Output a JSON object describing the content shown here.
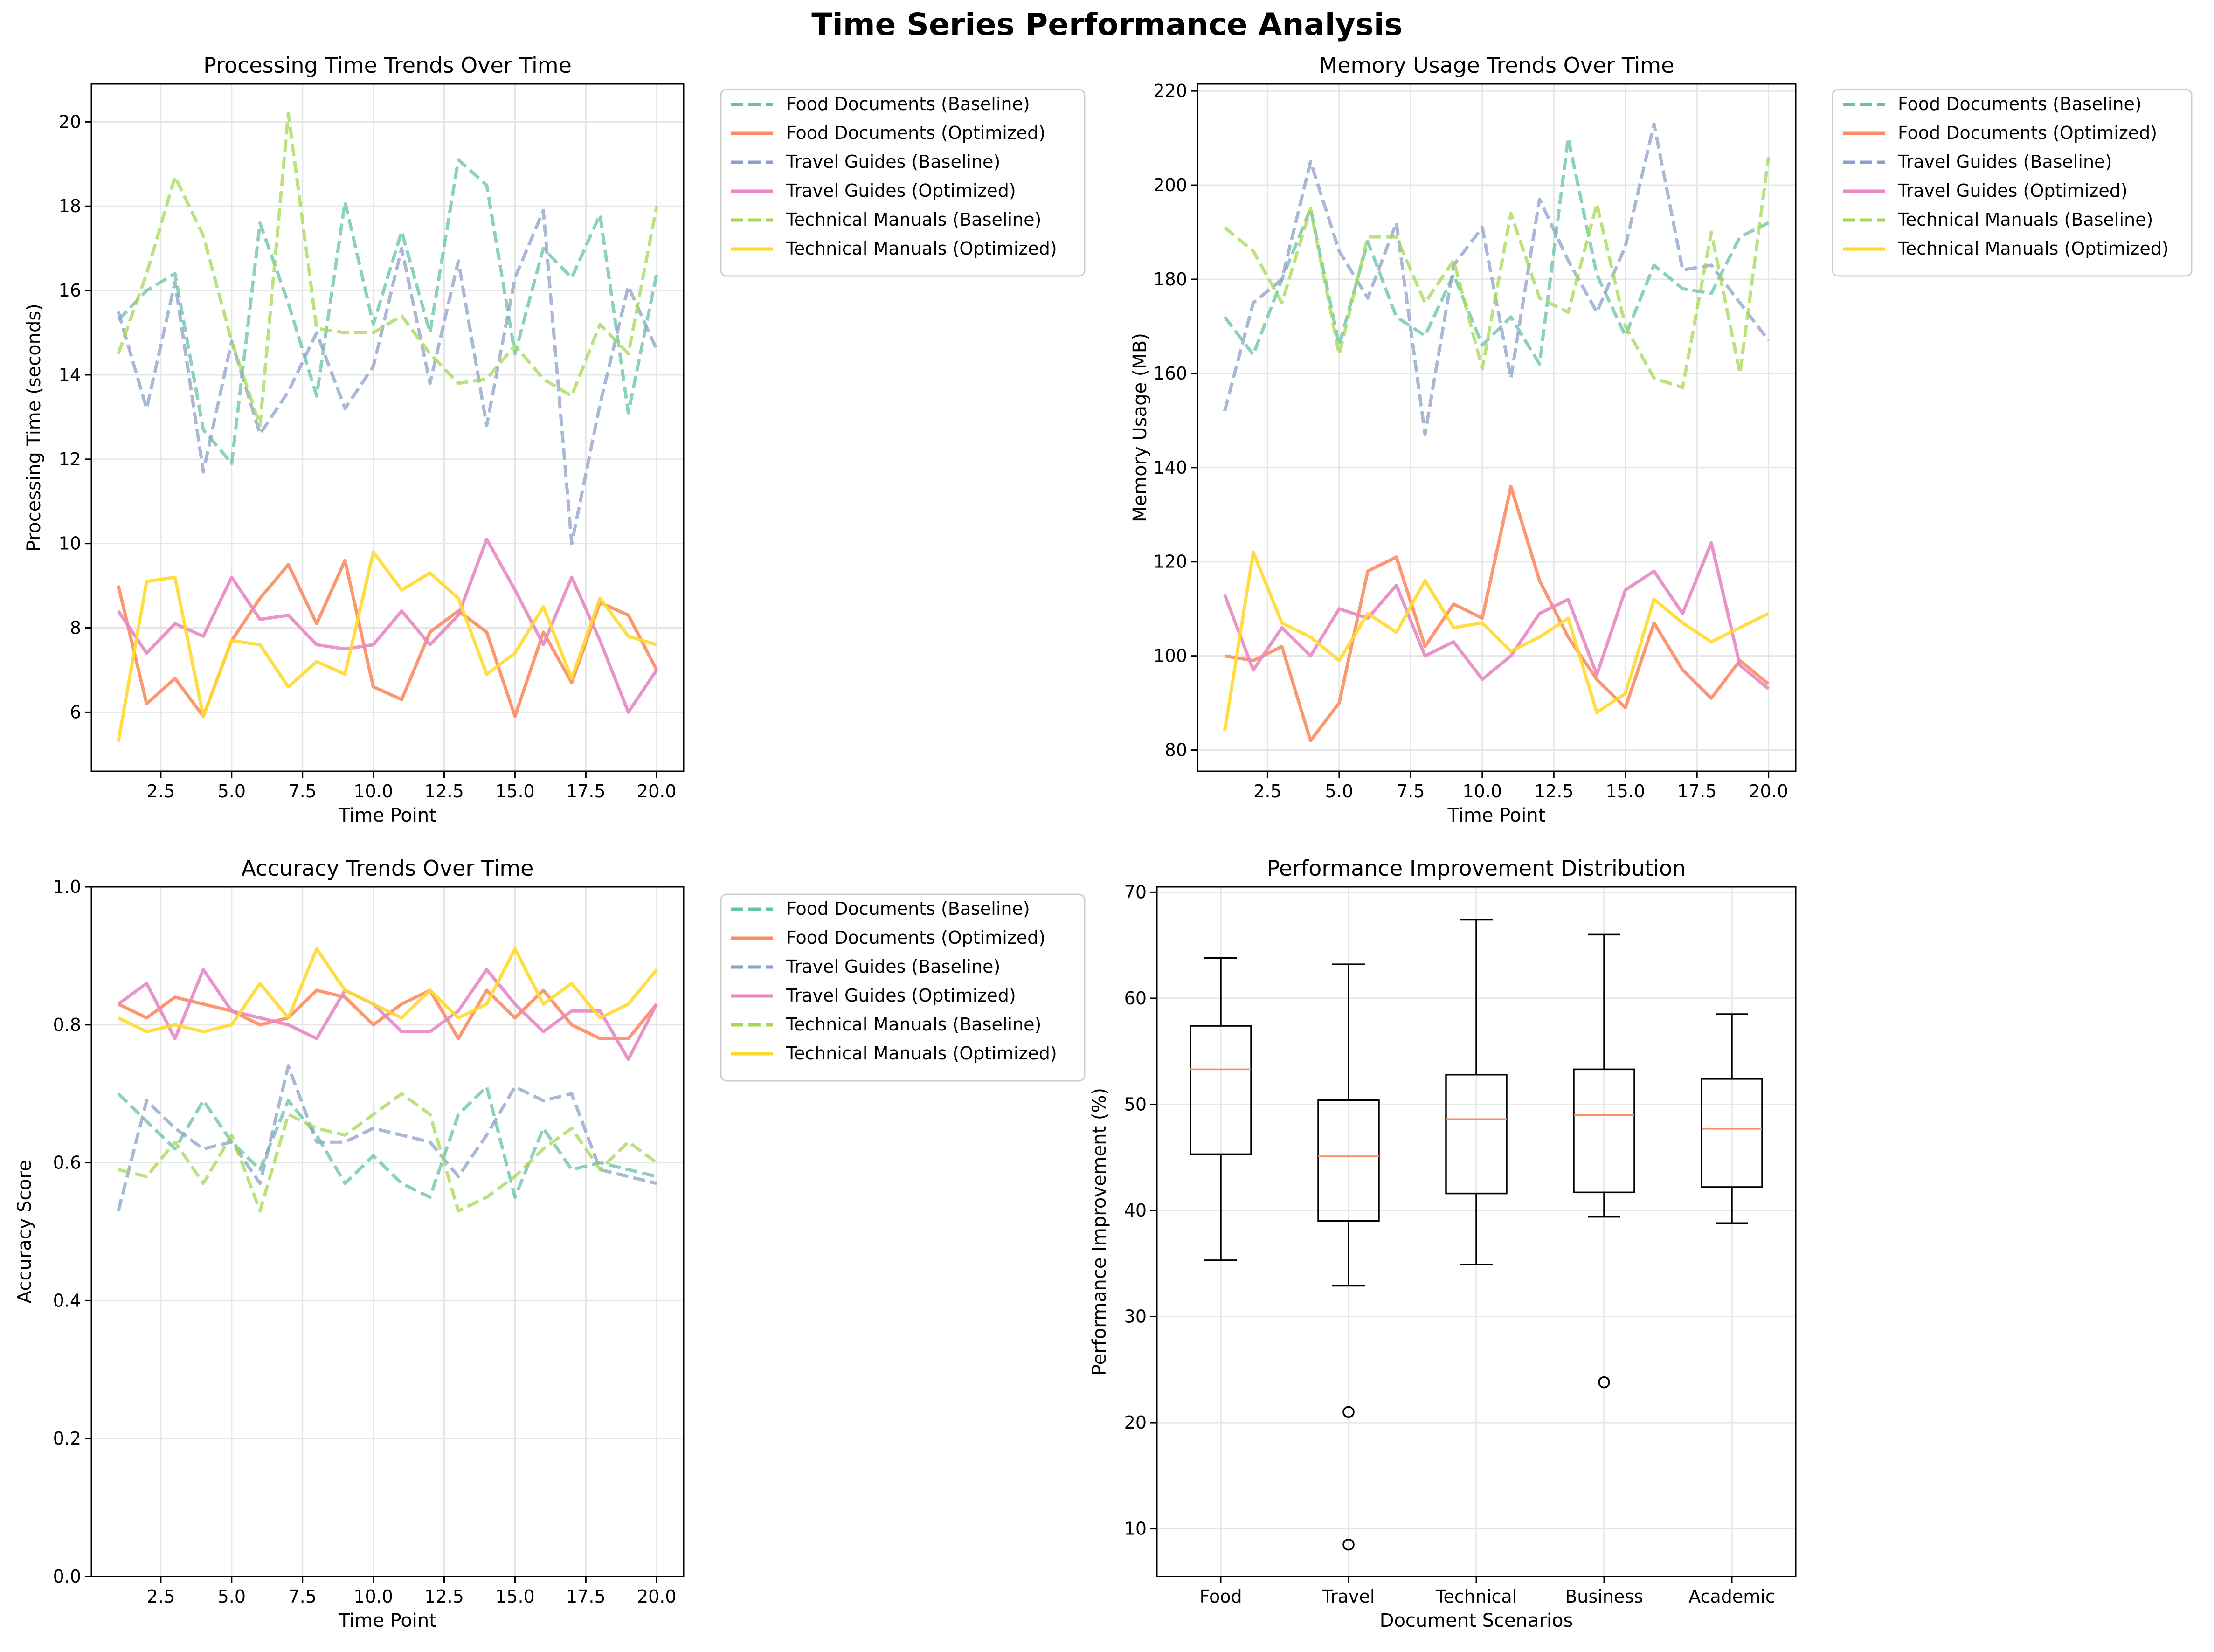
{
  "figure": {
    "title": "Time Series Performance Analysis"
  },
  "palette": {
    "Food Documents": "#66c2a5",
    "Travel Guides": "#8da0cb",
    "Technical Manuals": "#a6d854",
    "Food Documents Optimized": "#fc8d62",
    "Travel Guides Optimized": "#e78ac3",
    "Technical Manuals Optimized": "#ffd92f",
    "median": "#fc8d62"
  },
  "chart_data": [
    {
      "id": "processing",
      "type": "line",
      "title": "Processing Time Trends Over Time",
      "xlabel": "Time Point",
      "ylabel": "Processing Time (seconds)",
      "xlim": [
        0.05,
        20.95
      ],
      "ylim": [
        4.6,
        20.9
      ],
      "xticks": [
        2.5,
        5.0,
        7.5,
        10.0,
        12.5,
        15.0,
        17.5,
        20.0
      ],
      "yticks": [
        6,
        8,
        10,
        12,
        14,
        16,
        18,
        20
      ],
      "grid": true,
      "legend": "outside-right",
      "x": [
        1,
        2,
        3,
        4,
        5,
        6,
        7,
        8,
        9,
        10,
        11,
        12,
        13,
        14,
        15,
        16,
        17,
        18,
        19,
        20
      ],
      "series": [
        {
          "name": "Food Documents (Baseline)",
          "style": "dashed",
          "color": "#66c2a5",
          "values": [
            15.3,
            16.0,
            16.4,
            12.7,
            11.9,
            17.6,
            15.7,
            13.5,
            18.1,
            15.2,
            17.4,
            15.0,
            19.1,
            18.5,
            14.5,
            17.0,
            16.3,
            17.8,
            13.1,
            16.4
          ]
        },
        {
          "name": "Food Documents (Optimized)",
          "style": "solid",
          "color": "#fc8d62",
          "values": [
            9.0,
            6.2,
            6.8,
            5.9,
            7.7,
            8.7,
            9.5,
            8.1,
            9.6,
            6.6,
            6.3,
            7.9,
            8.4,
            7.9,
            5.9,
            7.9,
            6.7,
            8.6,
            8.3,
            7.0
          ]
        },
        {
          "name": "Travel Guides (Baseline)",
          "style": "dashed",
          "color": "#8da0cb",
          "values": [
            15.5,
            13.2,
            16.2,
            11.7,
            14.8,
            12.6,
            13.6,
            15.0,
            13.2,
            14.2,
            17.0,
            13.8,
            16.7,
            12.8,
            16.3,
            17.9,
            10.0,
            13.3,
            16.1,
            14.6
          ]
        },
        {
          "name": "Travel Guides (Optimized)",
          "style": "solid",
          "color": "#e78ac3",
          "values": [
            8.4,
            7.4,
            8.1,
            7.8,
            9.2,
            8.2,
            8.3,
            7.6,
            7.5,
            7.6,
            8.4,
            7.6,
            8.3,
            10.1,
            8.9,
            7.6,
            9.2,
            7.7,
            6.0,
            7.0
          ]
        },
        {
          "name": "Technical Manuals (Baseline)",
          "style": "dashed",
          "color": "#a6d854",
          "values": [
            14.5,
            16.4,
            18.7,
            17.3,
            14.8,
            12.8,
            20.2,
            15.1,
            15.0,
            15.0,
            15.4,
            14.5,
            13.8,
            13.9,
            14.7,
            13.9,
            13.5,
            15.2,
            14.5,
            18.0
          ]
        },
        {
          "name": "Technical Manuals (Optimized)",
          "style": "solid",
          "color": "#ffd92f",
          "values": [
            5.3,
            9.1,
            9.2,
            5.9,
            7.7,
            7.6,
            6.6,
            7.2,
            6.9,
            9.8,
            8.9,
            9.3,
            8.7,
            6.9,
            7.4,
            8.5,
            6.8,
            8.7,
            7.8,
            7.6
          ]
        }
      ]
    },
    {
      "id": "memory",
      "type": "line",
      "title": "Memory Usage Trends Over Time",
      "xlabel": "Time Point",
      "ylabel": "Memory Usage (MB)",
      "xlim": [
        0.05,
        20.95
      ],
      "ylim": [
        75.5,
        221.5
      ],
      "xticks": [
        2.5,
        5.0,
        7.5,
        10.0,
        12.5,
        15.0,
        17.5,
        20.0
      ],
      "yticks": [
        80,
        100,
        120,
        140,
        160,
        180,
        200,
        220
      ],
      "grid": true,
      "legend": "outside-right",
      "x": [
        1,
        2,
        3,
        4,
        5,
        6,
        7,
        8,
        9,
        10,
        11,
        12,
        13,
        14,
        15,
        16,
        17,
        18,
        19,
        20
      ],
      "series": [
        {
          "name": "Food Documents (Baseline)",
          "style": "dashed",
          "color": "#66c2a5",
          "values": [
            172,
            164,
            180,
            195,
            166,
            188,
            172,
            168,
            181,
            166,
            172,
            162,
            210,
            181,
            168,
            183,
            178,
            177,
            189,
            192
          ]
        },
        {
          "name": "Food Documents (Optimized)",
          "style": "solid",
          "color": "#fc8d62",
          "values": [
            100,
            99,
            102,
            82,
            90,
            118,
            121,
            102,
            111,
            108,
            136,
            116,
            104,
            95,
            89,
            107,
            97,
            91,
            99,
            94
          ]
        },
        {
          "name": "Travel Guides (Baseline)",
          "style": "dashed",
          "color": "#8da0cb",
          "values": [
            152,
            175,
            180,
            205,
            186,
            176,
            192,
            147,
            183,
            191,
            159,
            197,
            184,
            173,
            187,
            213,
            182,
            183,
            175,
            167
          ]
        },
        {
          "name": "Travel Guides (Optimized)",
          "style": "solid",
          "color": "#e78ac3",
          "values": [
            113,
            97,
            106,
            100,
            110,
            108,
            115,
            100,
            103,
            95,
            100,
            109,
            112,
            96,
            114,
            118,
            109,
            124,
            98,
            93
          ]
        },
        {
          "name": "Technical Manuals (Baseline)",
          "style": "dashed",
          "color": "#a6d854",
          "values": [
            191,
            186,
            175,
            195,
            164,
            189,
            189,
            175,
            184,
            161,
            194,
            176,
            173,
            196,
            170,
            159,
            157,
            190,
            160,
            206
          ]
        },
        {
          "name": "Technical Manuals (Optimized)",
          "style": "solid",
          "color": "#ffd92f",
          "values": [
            84,
            122,
            107,
            104,
            99,
            109,
            105,
            116,
            106,
            107,
            101,
            104,
            108,
            88,
            92,
            112,
            107,
            103,
            106,
            109
          ]
        }
      ]
    },
    {
      "id": "accuracy",
      "type": "line",
      "title": "Accuracy Trends Over Time",
      "xlabel": "Time Point",
      "ylabel": "Accuracy Score",
      "xlim": [
        0.05,
        20.95
      ],
      "ylim": [
        0.0,
        1.0
      ],
      "xticks": [
        2.5,
        5.0,
        7.5,
        10.0,
        12.5,
        15.0,
        17.5,
        20.0
      ],
      "yticks": [
        0.0,
        0.2,
        0.4,
        0.6,
        0.8,
        1.0
      ],
      "grid": true,
      "legend": "outside-right",
      "x": [
        1,
        2,
        3,
        4,
        5,
        6,
        7,
        8,
        9,
        10,
        11,
        12,
        13,
        14,
        15,
        16,
        17,
        18,
        19,
        20
      ],
      "series": [
        {
          "name": "Food Documents (Baseline)",
          "style": "dashed",
          "color": "#66c2a5",
          "values": [
            0.7,
            0.66,
            0.62,
            0.69,
            0.63,
            0.59,
            0.69,
            0.64,
            0.57,
            0.61,
            0.57,
            0.55,
            0.67,
            0.71,
            0.55,
            0.65,
            0.59,
            0.6,
            0.59,
            0.58
          ]
        },
        {
          "name": "Food Documents (Optimized)",
          "style": "solid",
          "color": "#fc8d62",
          "values": [
            0.83,
            0.81,
            0.84,
            0.83,
            0.82,
            0.8,
            0.81,
            0.85,
            0.84,
            0.8,
            0.83,
            0.85,
            0.78,
            0.85,
            0.81,
            0.85,
            0.8,
            0.78,
            0.78,
            0.83
          ]
        },
        {
          "name": "Travel Guides (Baseline)",
          "style": "dashed",
          "color": "#8da0cb",
          "values": [
            0.53,
            0.69,
            0.65,
            0.62,
            0.63,
            0.57,
            0.74,
            0.63,
            0.63,
            0.65,
            0.64,
            0.63,
            0.58,
            0.64,
            0.71,
            0.69,
            0.7,
            0.59,
            0.58,
            0.57
          ]
        },
        {
          "name": "Travel Guides (Optimized)",
          "style": "solid",
          "color": "#e78ac3",
          "values": [
            0.83,
            0.86,
            0.78,
            0.88,
            0.82,
            0.81,
            0.8,
            0.78,
            0.85,
            0.83,
            0.79,
            0.79,
            0.82,
            0.88,
            0.83,
            0.79,
            0.82,
            0.82,
            0.75,
            0.83
          ]
        },
        {
          "name": "Technical Manuals (Baseline)",
          "style": "dashed",
          "color": "#a6d854",
          "values": [
            0.59,
            0.58,
            0.63,
            0.57,
            0.64,
            0.53,
            0.67,
            0.65,
            0.64,
            0.67,
            0.7,
            0.67,
            0.53,
            0.55,
            0.58,
            0.62,
            0.65,
            0.59,
            0.63,
            0.6
          ]
        },
        {
          "name": "Technical Manuals (Optimized)",
          "style": "solid",
          "color": "#ffd92f",
          "values": [
            0.81,
            0.79,
            0.8,
            0.79,
            0.8,
            0.86,
            0.81,
            0.91,
            0.85,
            0.83,
            0.81,
            0.85,
            0.81,
            0.83,
            0.91,
            0.83,
            0.86,
            0.81,
            0.83,
            0.88
          ]
        }
      ]
    },
    {
      "id": "improvement",
      "type": "box",
      "title": "Performance Improvement Distribution",
      "xlabel": "Document Scenarios",
      "ylabel": "Performance Improvement (%)",
      "ylim": [
        5.5,
        70.5
      ],
      "yticks": [
        10,
        20,
        30,
        40,
        50,
        60,
        70
      ],
      "grid": true,
      "categories": [
        "Food",
        "Travel",
        "Technical",
        "Business",
        "Academic"
      ],
      "boxes": [
        {
          "whisker_low": 35.3,
          "q1": 45.3,
          "median": 53.3,
          "q3": 57.4,
          "whisker_high": 63.8,
          "outliers": []
        },
        {
          "whisker_low": 32.9,
          "q1": 39.0,
          "median": 45.1,
          "q3": 50.4,
          "whisker_high": 63.2,
          "outliers": [
            21.0,
            8.5
          ]
        },
        {
          "whisker_low": 34.9,
          "q1": 41.6,
          "median": 48.6,
          "q3": 52.8,
          "whisker_high": 67.4,
          "outliers": []
        },
        {
          "whisker_low": 39.4,
          "q1": 41.7,
          "median": 49.0,
          "q3": 53.3,
          "whisker_high": 66.0,
          "outliers": [
            23.8
          ]
        },
        {
          "whisker_low": 38.8,
          "q1": 42.2,
          "median": 47.7,
          "q3": 52.4,
          "whisker_high": 58.5,
          "outliers": []
        }
      ]
    }
  ]
}
